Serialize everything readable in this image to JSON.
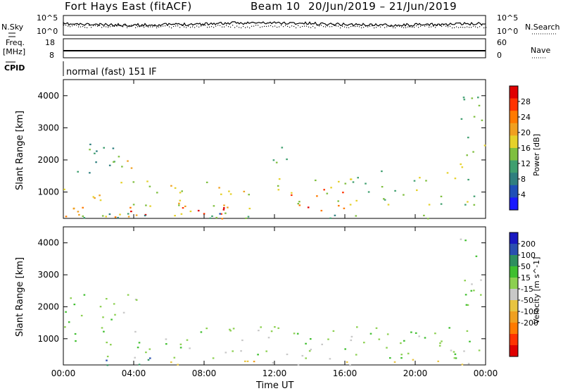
{
  "header": {
    "radar": "Fort Hays East (fitACF)",
    "beam": "Beam 10",
    "dates": "20/Jun/2019 – 21/Jun/2019"
  },
  "labels": {
    "nsky": "N.Sky",
    "freq": "Freq.",
    "mhz": "[MHz]",
    "cpid": "CPID",
    "nsearch": "N.Search",
    "nave": "Nave",
    "mode": "normal (fast) 151 IF",
    "noise_top_left": "10^5",
    "noise_bottom_left": "10^0",
    "noise_top_right": "10^5",
    "noise_bottom_right": "10^0",
    "freq_top": "18",
    "freq_bottom": "8",
    "nave_top": "60",
    "nave_bottom": "0"
  },
  "colors": {
    "power": [
      "#1a1aff",
      "#1f4fb8",
      "#2f7f7f",
      "#3f9f6f",
      "#7fbf3f",
      "#e5d12a",
      "#f0a020",
      "#ff7a00",
      "#ff3300",
      "#e00000"
    ],
    "velocity": [
      "#1818c0",
      "#2a4fb0",
      "#2f8f5f",
      "#3fbf2f",
      "#8cd050",
      "#c8c8c8",
      "#e8c440",
      "#f0a020",
      "#ff7a00",
      "#ff3300",
      "#e00000"
    ]
  },
  "chart_data": [
    {
      "type": "heatmap",
      "title": "Power",
      "xlabel": "",
      "ylabel": "Slant Range [km]",
      "colorbar_label": "Power [dB]",
      "xlim": [
        "00:00",
        "00:00"
      ],
      "ylim": [
        180,
        4500
      ],
      "y_ticks": [
        1000,
        2000,
        3000,
        4000
      ],
      "x_ticks": [
        "00:00",
        "04:00",
        "08:00",
        "12:00",
        "16:00",
        "20:00",
        "00:00"
      ],
      "colorbar_ticks": [
        4,
        8,
        12,
        16,
        20,
        24,
        28
      ],
      "colorbar_range": [
        0,
        32
      ],
      "scatter_regions": [
        {
          "t_start": 0.0,
          "t_end": 10.8,
          "r_min": 180,
          "r_max": 1400,
          "level": 18
        },
        {
          "t_start": 0.0,
          "t_end": 10.0,
          "r_min": 180,
          "r_max": 550,
          "level": 27
        },
        {
          "t_start": 12.5,
          "t_end": 16.2,
          "r_min": 400,
          "r_max": 1100,
          "level": 26
        },
        {
          "t_start": 12.0,
          "t_end": 24.0,
          "r_min": 600,
          "r_max": 1500,
          "level": 14
        },
        {
          "t_start": 0.0,
          "t_end": 24.0,
          "r_min": 180,
          "r_max": 350,
          "level": 10
        },
        {
          "t_start": 0.0,
          "t_end": 3.0,
          "r_min": 1500,
          "r_max": 2600,
          "level": 11
        },
        {
          "t_start": 3.0,
          "t_end": 4.5,
          "r_min": 1700,
          "r_max": 2500,
          "level": 17
        },
        {
          "t_start": 11.2,
          "t_end": 12.8,
          "r_min": 1800,
          "r_max": 2500,
          "level": 11
        },
        {
          "t_start": 18.0,
          "t_end": 19.0,
          "r_min": 1650,
          "r_max": 1950,
          "level": 13
        },
        {
          "t_start": 21.5,
          "t_end": 23.3,
          "r_min": 1600,
          "r_max": 2000,
          "level": 16
        },
        {
          "t_start": 22.5,
          "t_end": 24.0,
          "r_min": 2000,
          "r_max": 4200,
          "level": 15
        }
      ]
    },
    {
      "type": "heatmap",
      "title": "Velocity",
      "xlabel": "Time UT",
      "ylabel": "Slant Range [km]",
      "colorbar_label": "Velocity [m s^-1]",
      "xlim": [
        "00:00",
        "00:00"
      ],
      "ylim": [
        180,
        4500
      ],
      "y_ticks": [
        1000,
        2000,
        3000,
        4000
      ],
      "x_ticks": [
        "00:00",
        "04:00",
        "08:00",
        "12:00",
        "16:00",
        "20:00",
        "00:00"
      ],
      "colorbar_ticks": [
        200,
        100,
        50,
        15,
        -15,
        -50,
        -100,
        -200
      ],
      "scatter_regions": [
        {
          "t_start": 0.0,
          "t_end": 24.0,
          "r_min": 400,
          "r_max": 1400,
          "level": 0
        },
        {
          "t_start": 0.0,
          "t_end": 3.0,
          "r_min": 1500,
          "r_max": 2600,
          "level": 0
        },
        {
          "t_start": 3.0,
          "t_end": 4.5,
          "r_min": 1700,
          "r_max": 2500,
          "level": 0
        },
        {
          "t_start": 1.0,
          "t_end": 6.0,
          "r_min": 180,
          "r_max": 450,
          "level": 80
        },
        {
          "t_start": 6.0,
          "t_end": 11.0,
          "r_min": 180,
          "r_max": 450,
          "level": -80
        },
        {
          "t_start": 11.0,
          "t_end": 24.0,
          "r_min": 180,
          "r_max": 400,
          "level": -40
        },
        {
          "t_start": 22.5,
          "t_end": 24.0,
          "r_min": 2000,
          "r_max": 4200,
          "level": 0
        }
      ]
    }
  ]
}
